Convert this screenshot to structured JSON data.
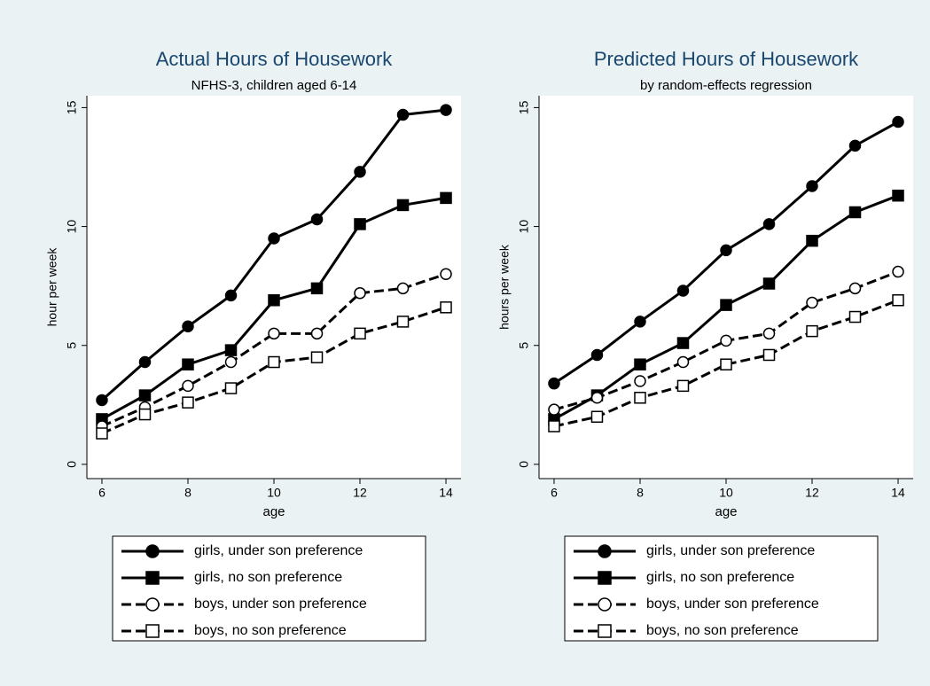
{
  "chart_data": [
    {
      "type": "line",
      "title": "Actual Hours of Housework",
      "subtitle": "NFHS-3, children aged 6-14",
      "xlabel": "age",
      "ylabel": "hour per week",
      "x": [
        6,
        7,
        8,
        9,
        10,
        11,
        12,
        13,
        14
      ],
      "xlim": [
        5.65,
        14.35
      ],
      "xticks": [
        6,
        8,
        10,
        12,
        14
      ],
      "ylim": [
        -0.6,
        15.5
      ],
      "yticks": [
        0,
        5,
        10,
        15
      ],
      "grid": false,
      "legend": "bottom",
      "series": [
        {
          "name": "girls, under son preference",
          "color": "#000000",
          "marker": "circle",
          "marker_fill": "#000000",
          "dash": "solid",
          "values": [
            2.7,
            4.3,
            5.8,
            7.1,
            9.5,
            10.3,
            12.3,
            14.7,
            14.9
          ]
        },
        {
          "name": "girls, no son preference",
          "color": "#000000",
          "marker": "square",
          "marker_fill": "#000000",
          "dash": "solid",
          "values": [
            1.9,
            2.9,
            4.2,
            4.8,
            6.9,
            7.4,
            10.1,
            10.9,
            11.2
          ]
        },
        {
          "name": "boys, under son preference",
          "color": "#000000",
          "marker": "circle",
          "marker_fill": "#ffffff",
          "dash": "dashed",
          "values": [
            1.6,
            2.4,
            3.3,
            4.3,
            5.5,
            5.5,
            7.2,
            7.4,
            8.0
          ]
        },
        {
          "name": "boys, no son preference",
          "color": "#000000",
          "marker": "square",
          "marker_fill": "#ffffff",
          "dash": "dashed",
          "values": [
            1.3,
            2.1,
            2.6,
            3.2,
            4.3,
            4.5,
            5.5,
            6.0,
            6.6
          ]
        }
      ]
    },
    {
      "type": "line",
      "title": "Predicted Hours of Housework",
      "subtitle": "by random-effects regression",
      "xlabel": "age",
      "ylabel": "hours per week",
      "x": [
        6,
        7,
        8,
        9,
        10,
        11,
        12,
        13,
        14
      ],
      "xlim": [
        5.65,
        14.35
      ],
      "xticks": [
        6,
        8,
        10,
        12,
        14
      ],
      "ylim": [
        -0.6,
        15.5
      ],
      "yticks": [
        0,
        5,
        10,
        15
      ],
      "grid": false,
      "legend": "bottom",
      "series": [
        {
          "name": "girls, under son preference",
          "color": "#000000",
          "marker": "circle",
          "marker_fill": "#000000",
          "dash": "solid",
          "values": [
            3.4,
            4.6,
            6.0,
            7.3,
            9.0,
            10.1,
            11.7,
            13.4,
            14.4
          ]
        },
        {
          "name": "girls, no son preference",
          "color": "#000000",
          "marker": "square",
          "marker_fill": "#000000",
          "dash": "solid",
          "values": [
            1.9,
            2.9,
            4.2,
            5.1,
            6.7,
            7.6,
            9.4,
            10.6,
            11.3
          ]
        },
        {
          "name": "boys, under son preference",
          "color": "#000000",
          "marker": "circle",
          "marker_fill": "#ffffff",
          "dash": "dashed",
          "values": [
            2.3,
            2.8,
            3.5,
            4.3,
            5.2,
            5.5,
            6.8,
            7.4,
            8.1
          ]
        },
        {
          "name": "boys, no son preference",
          "color": "#000000",
          "marker": "square",
          "marker_fill": "#ffffff",
          "dash": "dashed",
          "values": [
            1.6,
            2.0,
            2.8,
            3.3,
            4.2,
            4.6,
            5.6,
            6.2,
            6.9
          ]
        }
      ]
    }
  ]
}
